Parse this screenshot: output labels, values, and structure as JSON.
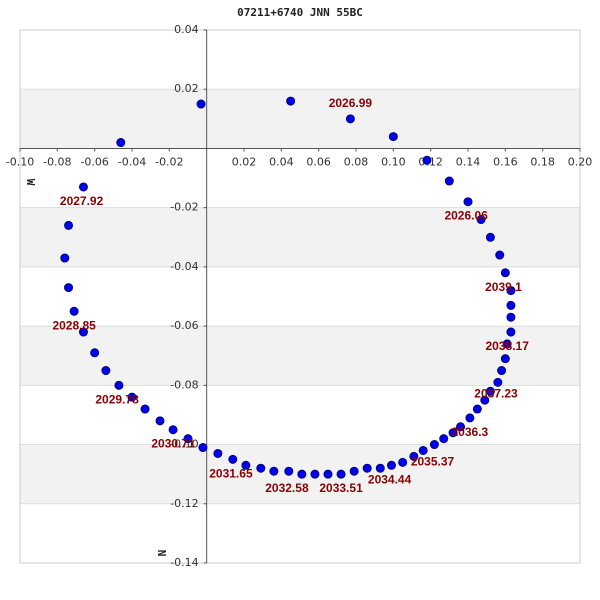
{
  "chart_data": {
    "type": "scatter",
    "title": "07211+6740 JNN  55BC",
    "xlabel": "W",
    "ylabel": "N",
    "xlim": [
      -0.1,
      0.2
    ],
    "ylim": [
      -0.14,
      0.04
    ],
    "xticks": [
      {
        "value": -0.1,
        "label": "-0.10"
      },
      {
        "value": -0.08,
        "label": "-0.08"
      },
      {
        "value": -0.06,
        "label": "-0.06"
      },
      {
        "value": -0.04,
        "label": "-0.04"
      },
      {
        "value": -0.02,
        "label": "-0.02"
      },
      {
        "value": 0.02,
        "label": "0.02"
      },
      {
        "value": 0.04,
        "label": "0.04"
      },
      {
        "value": 0.06,
        "label": "0.06"
      },
      {
        "value": 0.08,
        "label": "0.08"
      },
      {
        "value": 0.1,
        "label": "0.10"
      },
      {
        "value": 0.12,
        "label": "0.12"
      },
      {
        "value": 0.14,
        "label": "0.14"
      },
      {
        "value": 0.16,
        "label": "0.16"
      },
      {
        "value": 0.18,
        "label": "0.18"
      },
      {
        "value": 0.2,
        "label": "0.20"
      }
    ],
    "yticks": [
      {
        "value": 0.04,
        "label": "0.04"
      },
      {
        "value": 0.02,
        "label": "0.02"
      },
      {
        "value": -0.02,
        "label": "-0.02"
      },
      {
        "value": -0.04,
        "label": "-0.04"
      },
      {
        "value": -0.06,
        "label": "-0.06"
      },
      {
        "value": -0.08,
        "label": "-0.08"
      },
      {
        "value": -0.1,
        "label": "-0.10"
      },
      {
        "value": -0.12,
        "label": "-0.12"
      },
      {
        "value": -0.14,
        "label": "-0.14"
      }
    ],
    "grid": true,
    "color": "#0000ee",
    "annotation_color": "#8b0000",
    "x": [
      -0.046,
      -0.003,
      0.045,
      0.077,
      0.1,
      0.118,
      0.13,
      0.14,
      0.147,
      0.152,
      0.157,
      0.16,
      0.163,
      0.163,
      0.163,
      0.163,
      0.161,
      0.16,
      0.158,
      0.156,
      0.152,
      0.149,
      0.145,
      0.141,
      0.136,
      0.132,
      0.127,
      0.122,
      0.116,
      0.111,
      0.105,
      0.099,
      0.093,
      0.086,
      0.079,
      0.072,
      0.065,
      0.058,
      0.051,
      0.044,
      0.036,
      0.029,
      0.021,
      0.014,
      0.006,
      -0.002,
      -0.01,
      -0.018,
      -0.025,
      -0.033,
      -0.04,
      -0.047,
      -0.054,
      -0.06,
      -0.066,
      -0.071,
      -0.074,
      -0.076,
      -0.074,
      -0.066
    ],
    "values": [
      0.002,
      0.015,
      0.016,
      0.01,
      0.004,
      -0.004,
      -0.011,
      -0.018,
      -0.024,
      -0.03,
      -0.036,
      -0.042,
      -0.048,
      -0.053,
      -0.057,
      -0.062,
      -0.066,
      -0.071,
      -0.075,
      -0.079,
      -0.082,
      -0.085,
      -0.088,
      -0.091,
      -0.094,
      -0.096,
      -0.098,
      -0.1,
      -0.102,
      -0.104,
      -0.106,
      -0.107,
      -0.108,
      -0.108,
      -0.109,
      -0.11,
      -0.11,
      -0.11,
      -0.11,
      -0.109,
      -0.109,
      -0.108,
      -0.107,
      -0.105,
      -0.103,
      -0.101,
      -0.098,
      -0.095,
      -0.092,
      -0.088,
      -0.084,
      -0.08,
      -0.075,
      -0.069,
      -0.062,
      -0.055,
      -0.047,
      -0.037,
      -0.026,
      -0.013
    ],
    "annotations": [
      {
        "text": "2026.99",
        "x": 0.077,
        "y": 0.015
      },
      {
        "text": "2026.06",
        "x": 0.139,
        "y": -0.023
      },
      {
        "text": "2027.92",
        "x": -0.067,
        "y": -0.018
      },
      {
        "text": "2028.85",
        "x": -0.071,
        "y": -0.06
      },
      {
        "text": "2029.78",
        "x": -0.048,
        "y": -0.085
      },
      {
        "text": "2030.71",
        "x": -0.018,
        "y": -0.1
      },
      {
        "text": "2031.65",
        "x": 0.013,
        "y": -0.11
      },
      {
        "text": "2032.58",
        "x": 0.043,
        "y": -0.115
      },
      {
        "text": "2033.51",
        "x": 0.072,
        "y": -0.115
      },
      {
        "text": "2034.44",
        "x": 0.098,
        "y": -0.112
      },
      {
        "text": "2035.37",
        "x": 0.121,
        "y": -0.106
      },
      {
        "text": "2036.3",
        "x": 0.141,
        "y": -0.096
      },
      {
        "text": "2037.23",
        "x": 0.155,
        "y": -0.083
      },
      {
        "text": "2038.17",
        "x": 0.161,
        "y": -0.067
      },
      {
        "text": "2039.1",
        "x": 0.159,
        "y": -0.047
      }
    ]
  }
}
